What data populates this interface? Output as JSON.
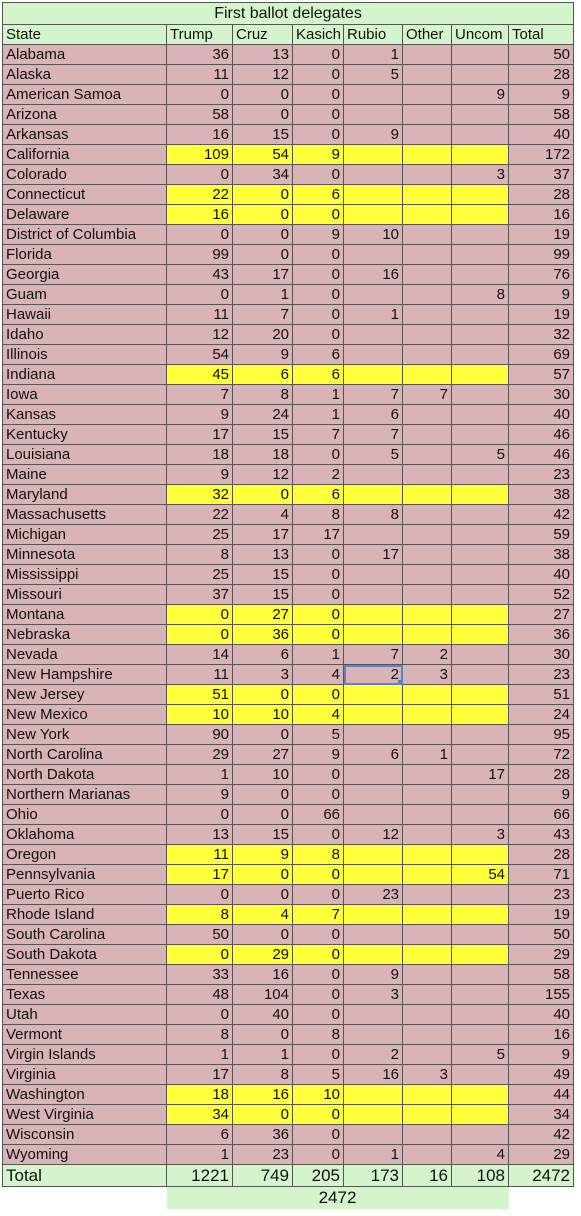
{
  "sheet": {
    "title": "First ballot delegates",
    "headers": [
      "State",
      "Trump",
      "Cruz",
      "Kasich",
      "Rubio",
      "Other",
      "Uncom",
      "Total"
    ],
    "rows": [
      {
        "state": "Alabama",
        "values": [
          "36",
          "13",
          "0",
          "1",
          "",
          "",
          "50"
        ],
        "hl": false
      },
      {
        "state": "Alaska",
        "values": [
          "11",
          "12",
          "0",
          "5",
          "",
          "",
          "28"
        ],
        "hl": false
      },
      {
        "state": "American Samoa",
        "values": [
          "0",
          "0",
          "0",
          "",
          "",
          "9",
          "9"
        ],
        "hl": false
      },
      {
        "state": "Arizona",
        "values": [
          "58",
          "0",
          "0",
          "",
          "",
          "",
          "58"
        ],
        "hl": false
      },
      {
        "state": "Arkansas",
        "values": [
          "16",
          "15",
          "0",
          "9",
          "",
          "",
          "40"
        ],
        "hl": false
      },
      {
        "state": "California",
        "values": [
          "109",
          "54",
          "9",
          "",
          "",
          "",
          "172"
        ],
        "hl": true
      },
      {
        "state": "Colorado",
        "values": [
          "0",
          "34",
          "0",
          "",
          "",
          "3",
          "37"
        ],
        "hl": false
      },
      {
        "state": "Connecticut",
        "values": [
          "22",
          "0",
          "6",
          "",
          "",
          "",
          "28"
        ],
        "hl": true
      },
      {
        "state": "Delaware",
        "values": [
          "16",
          "0",
          "0",
          "",
          "",
          "",
          "16"
        ],
        "hl": true
      },
      {
        "state": "District of Columbia",
        "values": [
          "0",
          "0",
          "9",
          "10",
          "",
          "",
          "19"
        ],
        "hl": false
      },
      {
        "state": "Florida",
        "values": [
          "99",
          "0",
          "0",
          "",
          "",
          "",
          "99"
        ],
        "hl": false
      },
      {
        "state": "Georgia",
        "values": [
          "43",
          "17",
          "0",
          "16",
          "",
          "",
          "76"
        ],
        "hl": false
      },
      {
        "state": "Guam",
        "values": [
          "0",
          "1",
          "0",
          "",
          "",
          "8",
          "9"
        ],
        "hl": false
      },
      {
        "state": "Hawaii",
        "values": [
          "11",
          "7",
          "0",
          "1",
          "",
          "",
          "19"
        ],
        "hl": false
      },
      {
        "state": "Idaho",
        "values": [
          "12",
          "20",
          "0",
          "",
          "",
          "",
          "32"
        ],
        "hl": false
      },
      {
        "state": "Illinois",
        "values": [
          "54",
          "9",
          "6",
          "",
          "",
          "",
          "69"
        ],
        "hl": false
      },
      {
        "state": "Indiana",
        "values": [
          "45",
          "6",
          "6",
          "",
          "",
          "",
          "57"
        ],
        "hl": true
      },
      {
        "state": "Iowa",
        "values": [
          "7",
          "8",
          "1",
          "7",
          "7",
          "",
          "30"
        ],
        "hl": false
      },
      {
        "state": "Kansas",
        "values": [
          "9",
          "24",
          "1",
          "6",
          "",
          "",
          "40"
        ],
        "hl": false
      },
      {
        "state": "Kentucky",
        "values": [
          "17",
          "15",
          "7",
          "7",
          "",
          "",
          "46"
        ],
        "hl": false
      },
      {
        "state": "Louisiana",
        "values": [
          "18",
          "18",
          "0",
          "5",
          "",
          "5",
          "46"
        ],
        "hl": false
      },
      {
        "state": "Maine",
        "values": [
          "9",
          "12",
          "2",
          "",
          "",
          "",
          "23"
        ],
        "hl": false
      },
      {
        "state": "Maryland",
        "values": [
          "32",
          "0",
          "6",
          "",
          "",
          "",
          "38"
        ],
        "hl": true
      },
      {
        "state": "Massachusetts",
        "values": [
          "22",
          "4",
          "8",
          "8",
          "",
          "",
          "42"
        ],
        "hl": false
      },
      {
        "state": "Michigan",
        "values": [
          "25",
          "17",
          "17",
          "",
          "",
          "",
          "59"
        ],
        "hl": false
      },
      {
        "state": "Minnesota",
        "values": [
          "8",
          "13",
          "0",
          "17",
          "",
          "",
          "38"
        ],
        "hl": false
      },
      {
        "state": "Mississippi",
        "values": [
          "25",
          "15",
          "0",
          "",
          "",
          "",
          "40"
        ],
        "hl": false
      },
      {
        "state": "Missouri",
        "values": [
          "37",
          "15",
          "0",
          "",
          "",
          "",
          "52"
        ],
        "hl": false
      },
      {
        "state": "Montana",
        "values": [
          "0",
          "27",
          "0",
          "",
          "",
          "",
          "27"
        ],
        "hl": true
      },
      {
        "state": "Nebraska",
        "values": [
          "0",
          "36",
          "0",
          "",
          "",
          "",
          "36"
        ],
        "hl": true
      },
      {
        "state": "Nevada",
        "values": [
          "14",
          "6",
          "1",
          "7",
          "2",
          "",
          "30"
        ],
        "hl": false
      },
      {
        "state": "New Hampshire",
        "values": [
          "11",
          "3",
          "4",
          "2",
          "3",
          "",
          "23"
        ],
        "hl": false,
        "sel": 4
      },
      {
        "state": "New Jersey",
        "values": [
          "51",
          "0",
          "0",
          "",
          "",
          "",
          "51"
        ],
        "hl": true
      },
      {
        "state": "New Mexico",
        "values": [
          "10",
          "10",
          "4",
          "",
          "",
          "",
          "24"
        ],
        "hl": true
      },
      {
        "state": "New York",
        "values": [
          "90",
          "0",
          "5",
          "",
          "",
          "",
          "95"
        ],
        "hl": false
      },
      {
        "state": "North Carolina",
        "values": [
          "29",
          "27",
          "9",
          "6",
          "1",
          "",
          "72"
        ],
        "hl": false
      },
      {
        "state": "North Dakota",
        "values": [
          "1",
          "10",
          "0",
          "",
          "",
          "17",
          "28"
        ],
        "hl": false
      },
      {
        "state": "Northern Marianas",
        "values": [
          "9",
          "0",
          "0",
          "",
          "",
          "",
          "9"
        ],
        "hl": false
      },
      {
        "state": "Ohio",
        "values": [
          "0",
          "0",
          "66",
          "",
          "",
          "",
          "66"
        ],
        "hl": false
      },
      {
        "state": "Oklahoma",
        "values": [
          "13",
          "15",
          "0",
          "12",
          "",
          "3",
          "43"
        ],
        "hl": false
      },
      {
        "state": "Oregon",
        "values": [
          "11",
          "9",
          "8",
          "",
          "",
          "",
          "28"
        ],
        "hl": true
      },
      {
        "state": "Pennsylvania",
        "values": [
          "17",
          "0",
          "0",
          "",
          "",
          "54",
          "71"
        ],
        "hl": true
      },
      {
        "state": "Puerto Rico",
        "values": [
          "0",
          "0",
          "0",
          "23",
          "",
          "",
          "23"
        ],
        "hl": false
      },
      {
        "state": "Rhode Island",
        "values": [
          "8",
          "4",
          "7",
          "",
          "",
          "",
          "19"
        ],
        "hl": true
      },
      {
        "state": "South Carolina",
        "values": [
          "50",
          "0",
          "0",
          "",
          "",
          "",
          "50"
        ],
        "hl": false
      },
      {
        "state": "South Dakota",
        "values": [
          "0",
          "29",
          "0",
          "",
          "",
          "",
          "29"
        ],
        "hl": true
      },
      {
        "state": "Tennessee",
        "values": [
          "33",
          "16",
          "0",
          "9",
          "",
          "",
          "58"
        ],
        "hl": false
      },
      {
        "state": "Texas",
        "values": [
          "48",
          "104",
          "0",
          "3",
          "",
          "",
          "155"
        ],
        "hl": false
      },
      {
        "state": "Utah",
        "values": [
          "0",
          "40",
          "0",
          "",
          "",
          "",
          "40"
        ],
        "hl": false
      },
      {
        "state": "Vermont",
        "values": [
          "8",
          "0",
          "8",
          "",
          "",
          "",
          "16"
        ],
        "hl": false
      },
      {
        "state": "Virgin Islands",
        "values": [
          "1",
          "1",
          "0",
          "2",
          "",
          "5",
          "9"
        ],
        "hl": false
      },
      {
        "state": "Virginia",
        "values": [
          "17",
          "8",
          "5",
          "16",
          "3",
          "",
          "49"
        ],
        "hl": false
      },
      {
        "state": "Washington",
        "values": [
          "18",
          "16",
          "10",
          "",
          "",
          "",
          "44"
        ],
        "hl": true
      },
      {
        "state": "West Virginia",
        "values": [
          "34",
          "0",
          "0",
          "",
          "",
          "",
          "34"
        ],
        "hl": true
      },
      {
        "state": "Wisconsin",
        "values": [
          "6",
          "36",
          "0",
          "",
          "",
          "",
          "42"
        ],
        "hl": false
      },
      {
        "state": "Wyoming",
        "values": [
          "1",
          "23",
          "0",
          "1",
          "",
          "4",
          "29"
        ],
        "hl": false
      }
    ],
    "totals": {
      "label": "Total",
      "values": [
        "1221",
        "749",
        "205",
        "173",
        "16",
        "108",
        "2472"
      ]
    },
    "grand_total": "2472"
  },
  "colors": {
    "pink": "#d9b3b6",
    "yellow": "#ffff3a",
    "green": "#d4f5cc",
    "selection": "#5b84c4"
  }
}
